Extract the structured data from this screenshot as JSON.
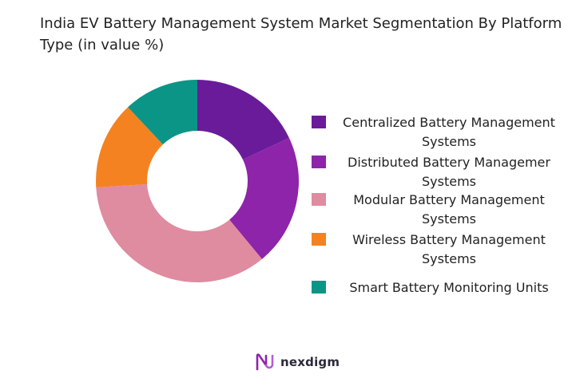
{
  "header": {
    "title": "India EV Battery Management System Market Segmentation By Platform Type (in value %)"
  },
  "chart_data": {
    "type": "pie",
    "variant": "donut",
    "title": "India EV Battery Management System Market Segmentation By Platform Type (in value %)",
    "legend_position": "right",
    "categories": [
      "Centralized Battery Management Systems",
      "Distributed Battery Managemer Systems",
      "Modular Battery Management Systems",
      "Wireless Battery Management Systems",
      "Smart Battery Monitoring Units"
    ],
    "values": [
      18,
      21,
      35,
      14,
      12
    ],
    "colors": [
      "#6a1b9a",
      "#8e24aa",
      "#df8ba0",
      "#f58220",
      "#0b9586"
    ]
  },
  "legend": {
    "items": [
      {
        "label": "Centralized Battery Management Systems",
        "color": "#6a1b9a"
      },
      {
        "label": "Distributed Battery Managemer Systems",
        "color": "#8e24aa"
      },
      {
        "label": "Modular Battery Management Systems",
        "color": "#df8ba0"
      },
      {
        "label": "Wireless Battery Management Systems",
        "color": "#f58220"
      },
      {
        "label": "Smart Battery Monitoring Units",
        "color": "#0b9586"
      }
    ]
  },
  "brand": {
    "name": "nexdigm",
    "logo_icon": "nexdigm-logo-icon",
    "logo_color": "#8e24aa"
  }
}
